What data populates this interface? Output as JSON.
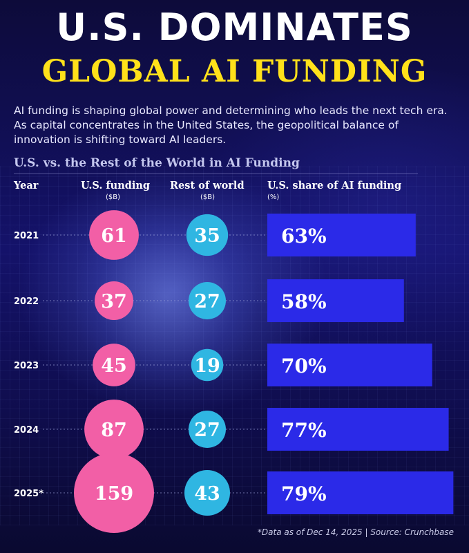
{
  "header": {
    "title": "U.S. DOMINATES",
    "subtitle": "GLOBAL AI FUNDING",
    "intro": "AI funding is shaping global power and determining who leads the next tech era. As capital concentrates in the United States, the geopolitical balance of innovation is shifting toward AI leaders."
  },
  "columns": {
    "year": "Year",
    "us_funding": "U.S. funding",
    "us_funding_unit": "($B)",
    "rest_of_world": "Rest of world",
    "rest_of_world_unit": "($B)",
    "us_share": "U.S. share of AI funding",
    "us_share_unit": "(%)"
  },
  "chart_data": {
    "type": "table",
    "title": "U.S. vs. the Rest of the World in AI Funding",
    "categories": [
      "2021",
      "2022",
      "2023",
      "2024",
      "2025*"
    ],
    "series": [
      {
        "name": "U.S. funding",
        "values": [
          61,
          37,
          45,
          87,
          159
        ]
      },
      {
        "name": "Rest of world",
        "values": [
          35,
          27,
          19,
          27,
          43
        ]
      },
      {
        "name": "U.S. share of AI funding",
        "values": [
          63,
          58,
          70,
          77,
          79
        ]
      }
    ],
    "share_labels": [
      "63%",
      "58%",
      "70%",
      "77%",
      "79%"
    ]
  },
  "colors": {
    "us_bubble": "#f25fa6",
    "row_bubble": "#2fb6e2",
    "share_bar": "#2b2ae8",
    "guide_line": "#9aa0d8"
  },
  "footnote": "*Data as of Dec 14, 2025 | Source: Crunchbase"
}
